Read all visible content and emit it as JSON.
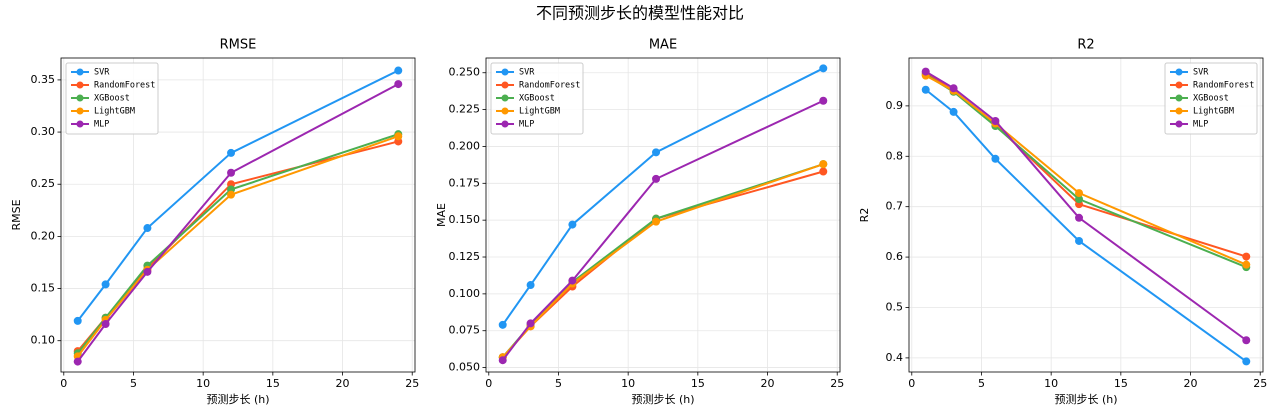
{
  "title": "不同预测步长的模型性能对比",
  "chart_data": [
    {
      "type": "line",
      "title": "RMSE",
      "xlabel": "预测步长 (h)",
      "ylabel": "RMSE",
      "x": [
        1,
        3,
        6,
        12,
        24
      ],
      "xlim": [
        -0.2,
        25.2
      ],
      "xticks": [
        0,
        5,
        10,
        15,
        20,
        25
      ],
      "ylim": [
        0.07,
        0.371
      ],
      "yticks": [
        {
          "value": 0.1,
          "label": "0.10"
        },
        0.15,
        {
          "value": 0.2,
          "label": "0.20"
        },
        0.25,
        {
          "value": 0.3,
          "label": "0.30"
        },
        0.35
      ],
      "grid": true,
      "legend": "upper-left",
      "series": [
        {
          "name": "SVR",
          "color": "#2196f3",
          "values": [
            0.119,
            0.154,
            0.208,
            0.28,
            0.359
          ]
        },
        {
          "name": "RandomForest",
          "color": "#ff5722",
          "values": [
            0.09,
            0.122,
            0.169,
            0.25,
            0.291
          ]
        },
        {
          "name": "XGBoost",
          "color": "#4caf50",
          "values": [
            0.088,
            0.122,
            0.172,
            0.245,
            0.298
          ]
        },
        {
          "name": "LightGBM",
          "color": "#ff9800",
          "values": [
            0.085,
            0.12,
            0.168,
            0.24,
            0.296
          ]
        },
        {
          "name": "MLP",
          "color": "#9c27b0",
          "values": [
            0.08,
            0.116,
            0.166,
            0.261,
            0.346
          ]
        }
      ]
    },
    {
      "type": "line",
      "title": "MAE",
      "xlabel": "预测步长 (h)",
      "ylabel": "MAE",
      "x": [
        1,
        3,
        6,
        12,
        24
      ],
      "xlim": [
        -0.2,
        25.2
      ],
      "xticks": [
        0,
        5,
        10,
        15,
        20,
        25
      ],
      "ylim": [
        0.047,
        0.26
      ],
      "yticks": [
        {
          "value": 0.05,
          "label": "0.050"
        },
        0.075,
        {
          "value": 0.1,
          "label": "0.100"
        },
        0.125,
        {
          "value": 0.15,
          "label": "0.150"
        },
        0.175,
        {
          "value": 0.2,
          "label": "0.200"
        },
        0.225,
        {
          "value": 0.25,
          "label": "0.250"
        }
      ],
      "grid": true,
      "legend": "upper-left",
      "series": [
        {
          "name": "SVR",
          "color": "#2196f3",
          "values": [
            0.079,
            0.106,
            0.147,
            0.196,
            0.253
          ]
        },
        {
          "name": "RandomForest",
          "color": "#ff5722",
          "values": [
            0.057,
            0.078,
            0.105,
            0.151,
            0.183
          ]
        },
        {
          "name": "XGBoost",
          "color": "#4caf50",
          "values": [
            0.057,
            0.079,
            0.108,
            0.151,
            0.188
          ]
        },
        {
          "name": "LightGBM",
          "color": "#ff9800",
          "values": [
            0.057,
            0.078,
            0.107,
            0.149,
            0.188
          ]
        },
        {
          "name": "MLP",
          "color": "#9c27b0",
          "values": [
            0.055,
            0.08,
            0.109,
            0.178,
            0.231
          ]
        }
      ]
    },
    {
      "type": "line",
      "title": "R2",
      "xlabel": "预测步长 (h)",
      "ylabel": "R2",
      "x": [
        1,
        3,
        6,
        12,
        24
      ],
      "xlim": [
        -0.2,
        25.2
      ],
      "xticks": [
        0,
        5,
        10,
        15,
        20,
        25
      ],
      "ylim": [
        0.372,
        0.995
      ],
      "yticks": [
        0.4,
        0.5,
        0.6,
        0.7,
        0.8,
        0.9
      ],
      "grid": true,
      "legend": "upper-right",
      "series": [
        {
          "name": "SVR",
          "color": "#2196f3",
          "values": [
            0.932,
            0.888,
            0.795,
            0.632,
            0.393
          ]
        },
        {
          "name": "RandomForest",
          "color": "#ff5722",
          "values": [
            0.965,
            0.93,
            0.862,
            0.705,
            0.601
          ]
        },
        {
          "name": "XGBoost",
          "color": "#4caf50",
          "values": [
            0.962,
            0.928,
            0.86,
            0.715,
            0.58
          ]
        },
        {
          "name": "LightGBM",
          "color": "#ff9800",
          "values": [
            0.96,
            0.93,
            0.865,
            0.727,
            0.585
          ]
        },
        {
          "name": "MLP",
          "color": "#9c27b0",
          "values": [
            0.968,
            0.935,
            0.87,
            0.678,
            0.435
          ]
        }
      ]
    }
  ]
}
